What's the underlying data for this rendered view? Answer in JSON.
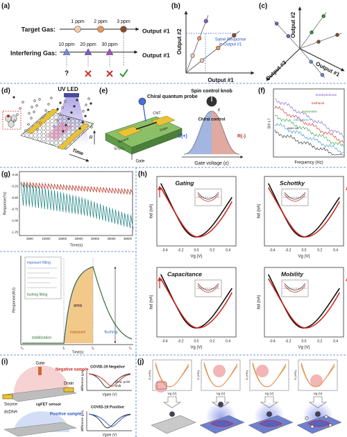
{
  "panels": {
    "a": {
      "label": "(a)",
      "target_gas": "Target Gas:",
      "target_levels": [
        "1 ppm",
        "2 ppm",
        "3 ppm"
      ],
      "target_output": "Output #1",
      "interfering_gas": "Interfering Gas:",
      "interfering_levels": [
        "10 ppm",
        "20 ppm",
        "30 ppm"
      ],
      "interfering_output": "Output #1",
      "unknown": "?"
    },
    "b": {
      "label": "(b)",
      "y_axis": "Output #2",
      "x_axis": "Output #1",
      "annotation": [
        "Same Response",
        "in Output #1"
      ]
    },
    "c": {
      "label": "(c)",
      "axis_1": "Output #1",
      "axis_2": "Output #2",
      "axis_3": "Output #3"
    },
    "d": {
      "label": "(d)",
      "light": "UV LED",
      "time": "Time",
      "resistance": "R"
    },
    "e": {
      "label": "(e)",
      "probe": "Chiral quantum probe",
      "source": "Source",
      "drain": "Drain",
      "channel": "CNT",
      "gate": "Gate",
      "substrate": "Si/SiO₂",
      "knob": "Spin control knob",
      "control": "Chiral control",
      "s_state": "S(+)",
      "r_state": "R(-)",
      "gate_axis": "Gate voltage (ε)",
      "epsilon": "ε"
    },
    "f": {
      "label": "(f)",
      "x_axis": "Frequency (Hz)",
      "y_axis": "S/I² x f",
      "legend": [
        "tetrahydrofuran",
        "methanol",
        "acetonitrile",
        "chloroform",
        "open air"
      ]
    },
    "g": {
      "label": "(g)",
      "top_x_ticks": [
        "5000",
        "10000",
        "15000",
        "20000",
        "25000",
        "30000",
        "35000"
      ],
      "top_y_ticks": [
        "0.00",
        "-0.25",
        "-0.50",
        "-0.75",
        "-1.00",
        "-1.25"
      ],
      "top_x_axis": "Time(s)",
      "top_y_axis": "Response(%)",
      "fits": [
        "exposure fitting",
        "fushing fitting"
      ],
      "phases": [
        "stabilization",
        "exposure",
        "flushing"
      ],
      "area": "area",
      "bottom_x_axis": "Time(s)",
      "bottom_y_axis": "Response(AU)",
      "time_marks": [
        "t₀",
        "t₁",
        "t₂",
        "t₃"
      ]
    },
    "h": {
      "label": "(h)",
      "titles": [
        "Gating",
        "Schottky",
        "Capacitance",
        "Mobility"
      ],
      "x_ticks": [
        "-0.4",
        "-0.2",
        "0.0",
        "0.2",
        "0.4"
      ],
      "x_axis": "Vg (V)",
      "y_axis": "Isd (nA)"
    },
    "i": {
      "label": "(i)",
      "gate": "Gate",
      "negative_sample": "Negative sample",
      "drain": "Drain",
      "source": "Source",
      "sensor": "cgFET sensor",
      "probe": "dsDNA",
      "positive_sample": "Positive sample",
      "negative_chart": "COVID-19 Negative",
      "positive_chart": "COVID-19 Positive",
      "dirac_shift": [
        "Dirac point",
        "shift"
      ],
      "x_axis": "Vgate (V)",
      "y_axis": "Idifference (μA)"
    },
    "j": {
      "label": "(j)",
      "x_axis": "Vg (V)",
      "y_axis": "G (e²/h)"
    }
  }
}
